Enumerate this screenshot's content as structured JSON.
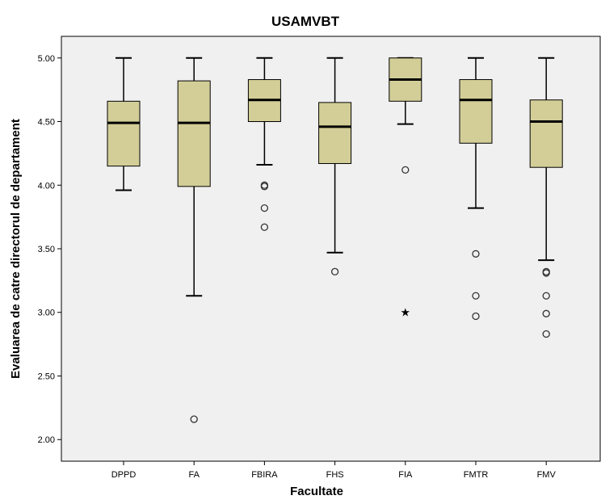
{
  "chart_data": {
    "type": "boxplot",
    "title": "USAMVBT",
    "xlabel": "Facultate",
    "ylabel": "Evaluarea de catre directorul de departament",
    "ylim": [
      1.83,
      5.17
    ],
    "yticks": [
      "2.00",
      "2.50",
      "3.00",
      "3.50",
      "4.00",
      "4.50",
      "5.00"
    ],
    "ytick_values": [
      2.0,
      2.5,
      3.0,
      3.5,
      4.0,
      4.5,
      5.0
    ],
    "grid": false,
    "colors": {
      "plot_bg": "#f0f0f0",
      "box_fill": "#d3ce97",
      "stroke": "#000000"
    },
    "categories": [
      "DPPD",
      "FA",
      "FBIRA",
      "FHS",
      "FIA",
      "FMTR",
      "FMV"
    ],
    "boxes": [
      {
        "category": "DPPD",
        "whisker_low": 3.96,
        "q1": 4.15,
        "median": 4.49,
        "q3": 4.66,
        "whisker_high": 5.0,
        "outliers": [],
        "extremes": []
      },
      {
        "category": "FA",
        "whisker_low": 3.13,
        "q1": 3.99,
        "median": 4.49,
        "q3": 4.82,
        "whisker_high": 5.0,
        "outliers": [
          2.16
        ],
        "extremes": []
      },
      {
        "category": "FBIRA",
        "whisker_low": 4.16,
        "q1": 4.5,
        "median": 4.67,
        "q3": 4.83,
        "whisker_high": 5.0,
        "outliers": [
          4.0,
          3.99,
          3.82,
          3.67
        ],
        "extremes": []
      },
      {
        "category": "FHS",
        "whisker_low": 3.47,
        "q1": 4.17,
        "median": 4.46,
        "q3": 4.65,
        "whisker_high": 5.0,
        "outliers": [
          3.32
        ],
        "extremes": []
      },
      {
        "category": "FIA",
        "whisker_low": 4.48,
        "q1": 4.66,
        "median": 4.83,
        "q3": 5.0,
        "whisker_high": 5.0,
        "outliers": [
          4.12
        ],
        "extremes": [
          3.0
        ]
      },
      {
        "category": "FMTR",
        "whisker_low": 3.82,
        "q1": 4.33,
        "median": 4.67,
        "q3": 4.83,
        "whisker_high": 5.0,
        "outliers": [
          3.46,
          3.13,
          2.97
        ],
        "extremes": []
      },
      {
        "category": "FMV",
        "whisker_low": 3.41,
        "q1": 4.14,
        "median": 4.5,
        "q3": 4.67,
        "whisker_high": 5.0,
        "outliers": [
          3.32,
          3.31,
          3.13,
          2.99,
          2.83
        ],
        "extremes": []
      }
    ]
  }
}
